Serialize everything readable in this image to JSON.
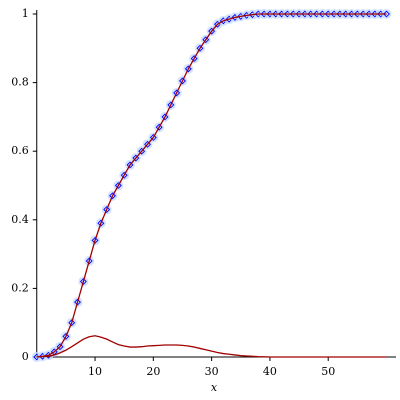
{
  "chart_data": {
    "type": "line",
    "x_label": "x",
    "xlim": [
      0,
      60.6
    ],
    "ylim": [
      0,
      1
    ],
    "xticks": [
      10,
      20,
      30,
      40,
      50
    ],
    "yticks": [
      0,
      0.2,
      0.4,
      0.6,
      0.8,
      1
    ],
    "x": [
      0,
      1,
      2,
      3,
      4,
      5,
      6,
      7,
      8,
      9,
      10,
      11,
      12,
      13,
      14,
      15,
      16,
      17,
      18,
      19,
      20,
      21,
      22,
      23,
      24,
      25,
      26,
      27,
      28,
      29,
      30,
      31,
      32,
      33,
      34,
      35,
      36,
      37,
      38,
      39,
      40,
      41,
      42,
      43,
      44,
      45,
      46,
      47,
      48,
      49,
      50,
      51,
      52,
      53,
      54,
      55,
      56,
      57,
      58,
      59,
      60
    ],
    "series": [
      {
        "style": "points",
        "color": "#0000ff",
        "halo_color": "#c8dcff",
        "values": [
          0,
          0.002,
          0.005,
          0.015,
          0.03,
          0.06,
          0.1,
          0.16,
          0.22,
          0.28,
          0.34,
          0.39,
          0.43,
          0.47,
          0.5,
          0.53,
          0.56,
          0.58,
          0.6,
          0.62,
          0.64,
          0.67,
          0.7,
          0.735,
          0.77,
          0.805,
          0.84,
          0.87,
          0.9,
          0.925,
          0.95,
          0.97,
          0.98,
          0.985,
          0.99,
          0.993,
          0.996,
          0.998,
          1,
          1,
          1,
          1,
          1,
          1,
          1,
          1,
          1,
          1,
          1,
          1,
          1,
          1,
          1,
          1,
          1,
          1,
          1,
          1,
          1,
          1,
          1
        ]
      },
      {
        "style": "line",
        "color": "#a00000",
        "values": [
          0,
          0.002,
          0.005,
          0.015,
          0.03,
          0.06,
          0.1,
          0.16,
          0.22,
          0.28,
          0.34,
          0.39,
          0.43,
          0.47,
          0.5,
          0.53,
          0.56,
          0.58,
          0.6,
          0.62,
          0.64,
          0.67,
          0.7,
          0.735,
          0.77,
          0.805,
          0.84,
          0.87,
          0.9,
          0.925,
          0.95,
          0.97,
          0.98,
          0.985,
          0.99,
          0.993,
          0.996,
          0.998,
          1,
          1,
          1,
          1,
          1,
          1,
          1,
          1,
          1,
          1,
          1,
          1,
          1,
          1,
          1,
          1,
          1,
          1,
          1,
          1,
          1,
          1,
          1
        ]
      },
      {
        "style": "line",
        "color": "#a00000",
        "values": [
          0,
          0.001,
          0.002,
          0.006,
          0.012,
          0.02,
          0.03,
          0.041,
          0.052,
          0.059,
          0.062,
          0.058,
          0.052,
          0.044,
          0.036,
          0.032,
          0.029,
          0.029,
          0.03,
          0.032,
          0.033,
          0.034,
          0.035,
          0.035,
          0.035,
          0.034,
          0.032,
          0.029,
          0.025,
          0.021,
          0.017,
          0.013,
          0.01,
          0.008,
          0.006,
          0.004,
          0.003,
          0.002,
          0.001,
          0.0005,
          0,
          0,
          0,
          0,
          0,
          0,
          0,
          0,
          0,
          0,
          0,
          0,
          0,
          0,
          0,
          0,
          0,
          0,
          0,
          0,
          0
        ]
      }
    ]
  }
}
